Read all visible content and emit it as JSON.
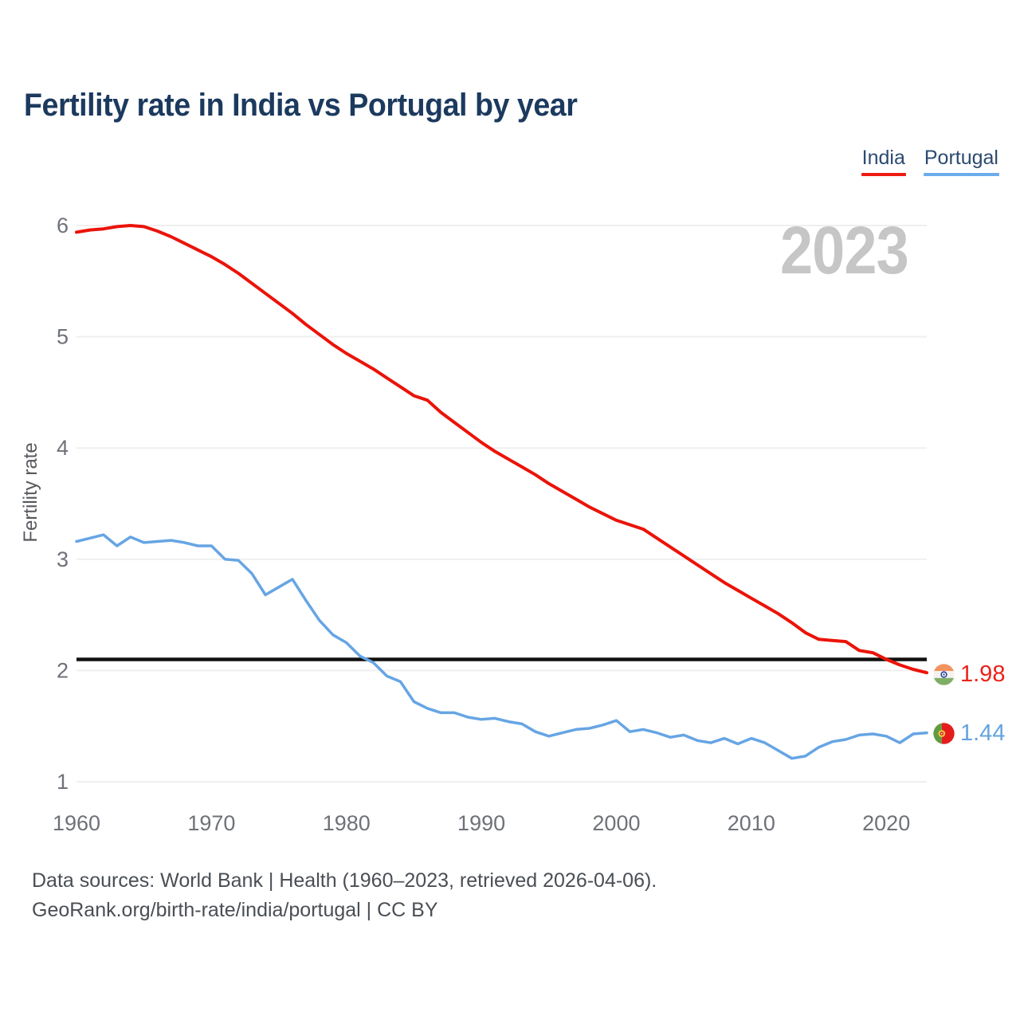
{
  "title": "Fertility rate in India vs Portugal by year",
  "watermark_year": "2023",
  "legend": {
    "items": [
      {
        "label": "India",
        "color": "#ed1b11"
      },
      {
        "label": "Portugal",
        "color": "#6cacec"
      }
    ]
  },
  "end_labels": [
    {
      "country": "India",
      "value": "1.98",
      "color": "#e8231a",
      "flag": "india-flag"
    },
    {
      "country": "Portugal",
      "value": "1.44",
      "color": "#64a3e0",
      "flag": "portugal-flag"
    }
  ],
  "footer": {
    "line1": "Data sources: World Bank | Health (1960–2023, retrieved 2026-04-06).",
    "line2": "GeoRank.org/birth-rate/india/portugal | CC BY"
  },
  "chart_data": {
    "type": "line",
    "title": "Fertility rate in India vs Portugal by year",
    "xlabel": "",
    "ylabel": "Fertility rate",
    "xlim": [
      1960,
      2023
    ],
    "ylim": [
      1,
      6
    ],
    "yticks": [
      1,
      2,
      3,
      4,
      5,
      6
    ],
    "xticks": [
      1960,
      1970,
      1980,
      1990,
      2000,
      2010,
      2020
    ],
    "grid": true,
    "legend_position": "top-right",
    "reference_line": {
      "value": 2.1,
      "color": "#111111"
    },
    "x": [
      1960,
      1961,
      1962,
      1963,
      1964,
      1965,
      1966,
      1967,
      1968,
      1969,
      1970,
      1971,
      1972,
      1973,
      1974,
      1975,
      1976,
      1977,
      1978,
      1979,
      1980,
      1981,
      1982,
      1983,
      1984,
      1985,
      1986,
      1987,
      1988,
      1989,
      1990,
      1991,
      1992,
      1993,
      1994,
      1995,
      1996,
      1997,
      1998,
      1999,
      2000,
      2001,
      2002,
      2003,
      2004,
      2005,
      2006,
      2007,
      2008,
      2009,
      2010,
      2011,
      2012,
      2013,
      2014,
      2015,
      2016,
      2017,
      2018,
      2019,
      2020,
      2021,
      2022,
      2023
    ],
    "series": [
      {
        "name": "India",
        "color": "#eb1309",
        "end_value": 1.98,
        "values": [
          5.94,
          5.96,
          5.97,
          5.99,
          6.0,
          5.99,
          5.95,
          5.9,
          5.84,
          5.78,
          5.72,
          5.65,
          5.57,
          5.48,
          5.39,
          5.3,
          5.21,
          5.11,
          5.02,
          4.93,
          4.85,
          4.78,
          4.71,
          4.63,
          4.55,
          4.47,
          4.43,
          4.32,
          4.23,
          4.14,
          4.05,
          3.97,
          3.9,
          3.83,
          3.76,
          3.68,
          3.61,
          3.54,
          3.47,
          3.41,
          3.35,
          3.31,
          3.27,
          3.19,
          3.11,
          3.03,
          2.95,
          2.87,
          2.79,
          2.72,
          2.65,
          2.58,
          2.51,
          2.43,
          2.34,
          2.28,
          2.27,
          2.26,
          2.18,
          2.16,
          2.1,
          2.05,
          2.01,
          1.98
        ]
      },
      {
        "name": "Portugal",
        "color": "#66a5e4",
        "end_value": 1.44,
        "values": [
          3.16,
          3.19,
          3.22,
          3.12,
          3.2,
          3.15,
          3.16,
          3.17,
          3.15,
          3.12,
          3.12,
          3.0,
          2.99,
          2.87,
          2.68,
          2.75,
          2.82,
          2.63,
          2.45,
          2.32,
          2.25,
          2.13,
          2.07,
          1.95,
          1.9,
          1.72,
          1.66,
          1.62,
          1.62,
          1.58,
          1.56,
          1.57,
          1.54,
          1.52,
          1.45,
          1.41,
          1.44,
          1.47,
          1.48,
          1.51,
          1.55,
          1.45,
          1.47,
          1.44,
          1.4,
          1.42,
          1.37,
          1.35,
          1.39,
          1.34,
          1.39,
          1.35,
          1.28,
          1.21,
          1.23,
          1.31,
          1.36,
          1.38,
          1.42,
          1.43,
          1.41,
          1.35,
          1.43,
          1.44
        ]
      }
    ],
    "axis_text_color": "#6e7278",
    "grid_color": "#efefef"
  }
}
